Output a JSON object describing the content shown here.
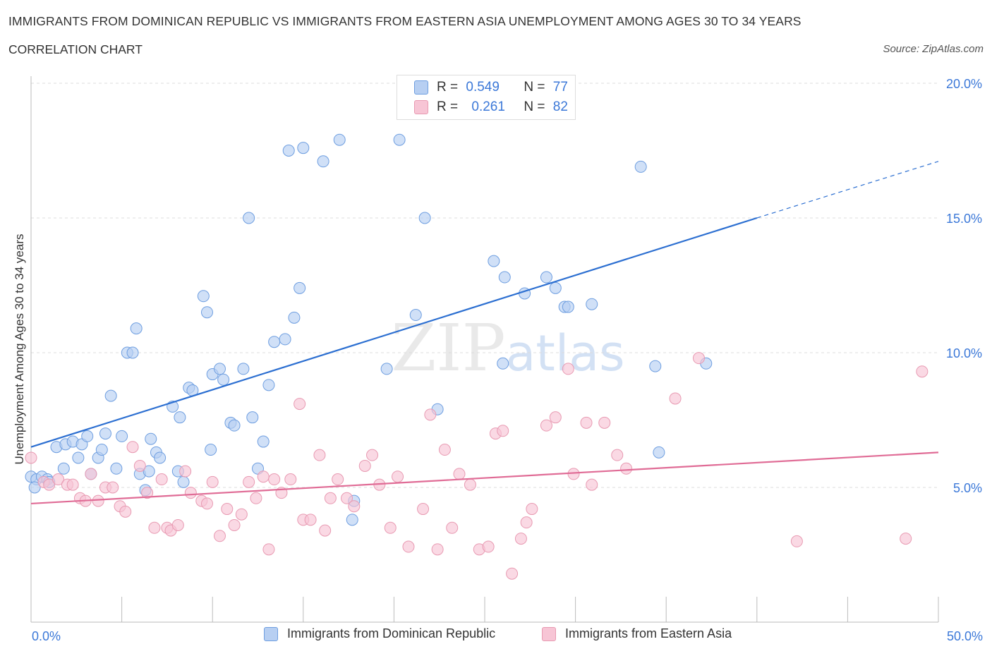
{
  "chart_data": {
    "type": "scatter",
    "title": "IMMIGRANTS FROM DOMINICAN REPUBLIC VS IMMIGRANTS FROM EASTERN ASIA UNEMPLOYMENT AMONG AGES 30 TO 34 YEARS",
    "subtitle": "CORRELATION CHART",
    "source": "Source: ZipAtlas.com",
    "watermark": "ZIPatlas",
    "xlabel": "",
    "ylabel": "Unemployment Among Ages 30 to 34 years",
    "xlim": [
      0,
      50
    ],
    "ylim": [
      0,
      20
    ],
    "x_tick_labels": {
      "left": "0.0%",
      "right": "50.0%"
    },
    "y_ticks": [
      {
        "value": 5,
        "label": "5.0%"
      },
      {
        "value": 10,
        "label": "10.0%"
      },
      {
        "value": 15,
        "label": "15.0%"
      },
      {
        "value": 20,
        "label": "20.0%"
      }
    ],
    "legend_stats": [
      {
        "r_label": "R =",
        "r": "0.549",
        "n_label": "N =",
        "n": "77"
      },
      {
        "r_label": "R =",
        "r": "0.261",
        "n_label": "N =",
        "n": "82"
      }
    ],
    "series": [
      {
        "name": "Immigrants from Dominican Republic",
        "color": "#6e9ee0",
        "fill": "#b7cff2",
        "line_color": "#2c6fd1",
        "trend": {
          "x0": 0,
          "y0": 6.5,
          "x1": 40,
          "y1": 15.0,
          "dash_to_x": 50,
          "dash_to_y": 17.1
        },
        "points": [
          [
            0.0,
            5.4
          ],
          [
            0.3,
            5.3
          ],
          [
            0.6,
            5.4
          ],
          [
            0.9,
            5.3
          ],
          [
            1.0,
            5.2
          ],
          [
            1.4,
            6.5
          ],
          [
            1.8,
            5.7
          ],
          [
            1.9,
            6.6
          ],
          [
            2.3,
            6.7
          ],
          [
            2.6,
            6.1
          ],
          [
            2.8,
            6.6
          ],
          [
            3.1,
            6.9
          ],
          [
            3.3,
            5.5
          ],
          [
            3.7,
            6.1
          ],
          [
            3.9,
            6.4
          ],
          [
            4.1,
            7.0
          ],
          [
            4.4,
            8.4
          ],
          [
            4.7,
            5.7
          ],
          [
            5.0,
            6.9
          ],
          [
            5.3,
            10.0
          ],
          [
            5.6,
            10.0
          ],
          [
            5.8,
            10.9
          ],
          [
            6.0,
            5.5
          ],
          [
            6.3,
            4.9
          ],
          [
            6.5,
            5.6
          ],
          [
            6.6,
            6.8
          ],
          [
            6.9,
            6.3
          ],
          [
            7.1,
            6.1
          ],
          [
            7.8,
            8.0
          ],
          [
            8.1,
            5.6
          ],
          [
            8.2,
            7.6
          ],
          [
            8.4,
            5.2
          ],
          [
            8.7,
            8.7
          ],
          [
            8.9,
            8.6
          ],
          [
            9.5,
            12.1
          ],
          [
            9.7,
            11.5
          ],
          [
            9.9,
            6.4
          ],
          [
            10.0,
            9.2
          ],
          [
            10.4,
            9.4
          ],
          [
            10.6,
            9.0
          ],
          [
            11.0,
            7.4
          ],
          [
            11.2,
            7.3
          ],
          [
            11.7,
            9.4
          ],
          [
            12.0,
            15.0
          ],
          [
            12.2,
            7.6
          ],
          [
            12.5,
            5.7
          ],
          [
            12.8,
            6.7
          ],
          [
            13.1,
            8.8
          ],
          [
            13.4,
            10.4
          ],
          [
            14.0,
            10.5
          ],
          [
            14.2,
            17.5
          ],
          [
            14.5,
            11.3
          ],
          [
            14.8,
            12.4
          ],
          [
            15.0,
            17.6
          ],
          [
            16.1,
            17.1
          ],
          [
            17.0,
            17.9
          ],
          [
            17.7,
            3.8
          ],
          [
            17.8,
            4.5
          ],
          [
            19.6,
            9.4
          ],
          [
            20.3,
            17.9
          ],
          [
            21.2,
            11.4
          ],
          [
            21.7,
            15.0
          ],
          [
            22.4,
            7.9
          ],
          [
            26.0,
            9.6
          ],
          [
            25.5,
            13.4
          ],
          [
            26.1,
            12.8
          ],
          [
            27.2,
            12.2
          ],
          [
            28.4,
            12.8
          ],
          [
            28.9,
            12.4
          ],
          [
            29.4,
            11.7
          ],
          [
            29.6,
            11.7
          ],
          [
            30.9,
            11.8
          ],
          [
            33.6,
            16.9
          ],
          [
            34.4,
            9.5
          ],
          [
            34.6,
            6.3
          ],
          [
            37.2,
            9.6
          ],
          [
            0.2,
            5.0
          ]
        ]
      },
      {
        "name": "Immigrants from Eastern Asia",
        "color": "#e89ab2",
        "fill": "#f7c5d5",
        "line_color": "#e06c96",
        "trend": {
          "x0": 0,
          "y0": 4.4,
          "x1": 50,
          "y1": 6.3
        },
        "points": [
          [
            0.0,
            6.1
          ],
          [
            0.7,
            5.2
          ],
          [
            1.0,
            5.1
          ],
          [
            1.5,
            5.3
          ],
          [
            2.0,
            5.1
          ],
          [
            2.3,
            5.1
          ],
          [
            2.7,
            4.6
          ],
          [
            3.0,
            4.5
          ],
          [
            3.3,
            5.5
          ],
          [
            3.7,
            4.5
          ],
          [
            4.1,
            5.0
          ],
          [
            4.5,
            5.0
          ],
          [
            4.9,
            4.3
          ],
          [
            5.2,
            4.1
          ],
          [
            5.6,
            6.5
          ],
          [
            6.0,
            5.8
          ],
          [
            6.4,
            4.8
          ],
          [
            6.8,
            3.5
          ],
          [
            7.2,
            5.3
          ],
          [
            7.5,
            3.5
          ],
          [
            7.7,
            3.4
          ],
          [
            8.1,
            3.6
          ],
          [
            8.5,
            5.6
          ],
          [
            8.8,
            4.8
          ],
          [
            9.4,
            4.5
          ],
          [
            9.7,
            4.4
          ],
          [
            10.0,
            5.2
          ],
          [
            10.4,
            3.2
          ],
          [
            10.8,
            4.2
          ],
          [
            11.2,
            3.6
          ],
          [
            11.6,
            4.0
          ],
          [
            12.0,
            5.2
          ],
          [
            12.4,
            4.6
          ],
          [
            12.8,
            5.4
          ],
          [
            13.1,
            2.7
          ],
          [
            13.4,
            5.3
          ],
          [
            13.8,
            4.8
          ],
          [
            14.3,
            5.3
          ],
          [
            14.8,
            8.1
          ],
          [
            15.0,
            3.8
          ],
          [
            15.4,
            3.8
          ],
          [
            15.9,
            6.2
          ],
          [
            16.2,
            3.4
          ],
          [
            16.5,
            4.6
          ],
          [
            16.9,
            5.3
          ],
          [
            17.4,
            4.6
          ],
          [
            17.8,
            4.3
          ],
          [
            18.4,
            5.8
          ],
          [
            18.8,
            6.2
          ],
          [
            19.2,
            5.1
          ],
          [
            19.8,
            3.5
          ],
          [
            20.2,
            5.4
          ],
          [
            20.8,
            2.8
          ],
          [
            21.6,
            4.2
          ],
          [
            22.0,
            7.7
          ],
          [
            22.4,
            2.7
          ],
          [
            22.8,
            6.4
          ],
          [
            23.2,
            3.5
          ],
          [
            23.6,
            5.5
          ],
          [
            24.2,
            5.1
          ],
          [
            24.7,
            2.7
          ],
          [
            25.2,
            2.8
          ],
          [
            25.6,
            7.0
          ],
          [
            26.0,
            7.1
          ],
          [
            26.5,
            1.8
          ],
          [
            27.0,
            3.1
          ],
          [
            27.3,
            3.7
          ],
          [
            27.6,
            4.2
          ],
          [
            28.4,
            7.3
          ],
          [
            28.9,
            7.6
          ],
          [
            29.6,
            9.4
          ],
          [
            29.9,
            5.5
          ],
          [
            30.6,
            7.4
          ],
          [
            30.9,
            5.1
          ],
          [
            31.6,
            7.4
          ],
          [
            32.3,
            6.2
          ],
          [
            32.8,
            5.7
          ],
          [
            35.5,
            8.3
          ],
          [
            36.8,
            9.8
          ],
          [
            42.2,
            3.0
          ],
          [
            48.2,
            3.1
          ],
          [
            49.1,
            9.3
          ]
        ]
      }
    ]
  }
}
